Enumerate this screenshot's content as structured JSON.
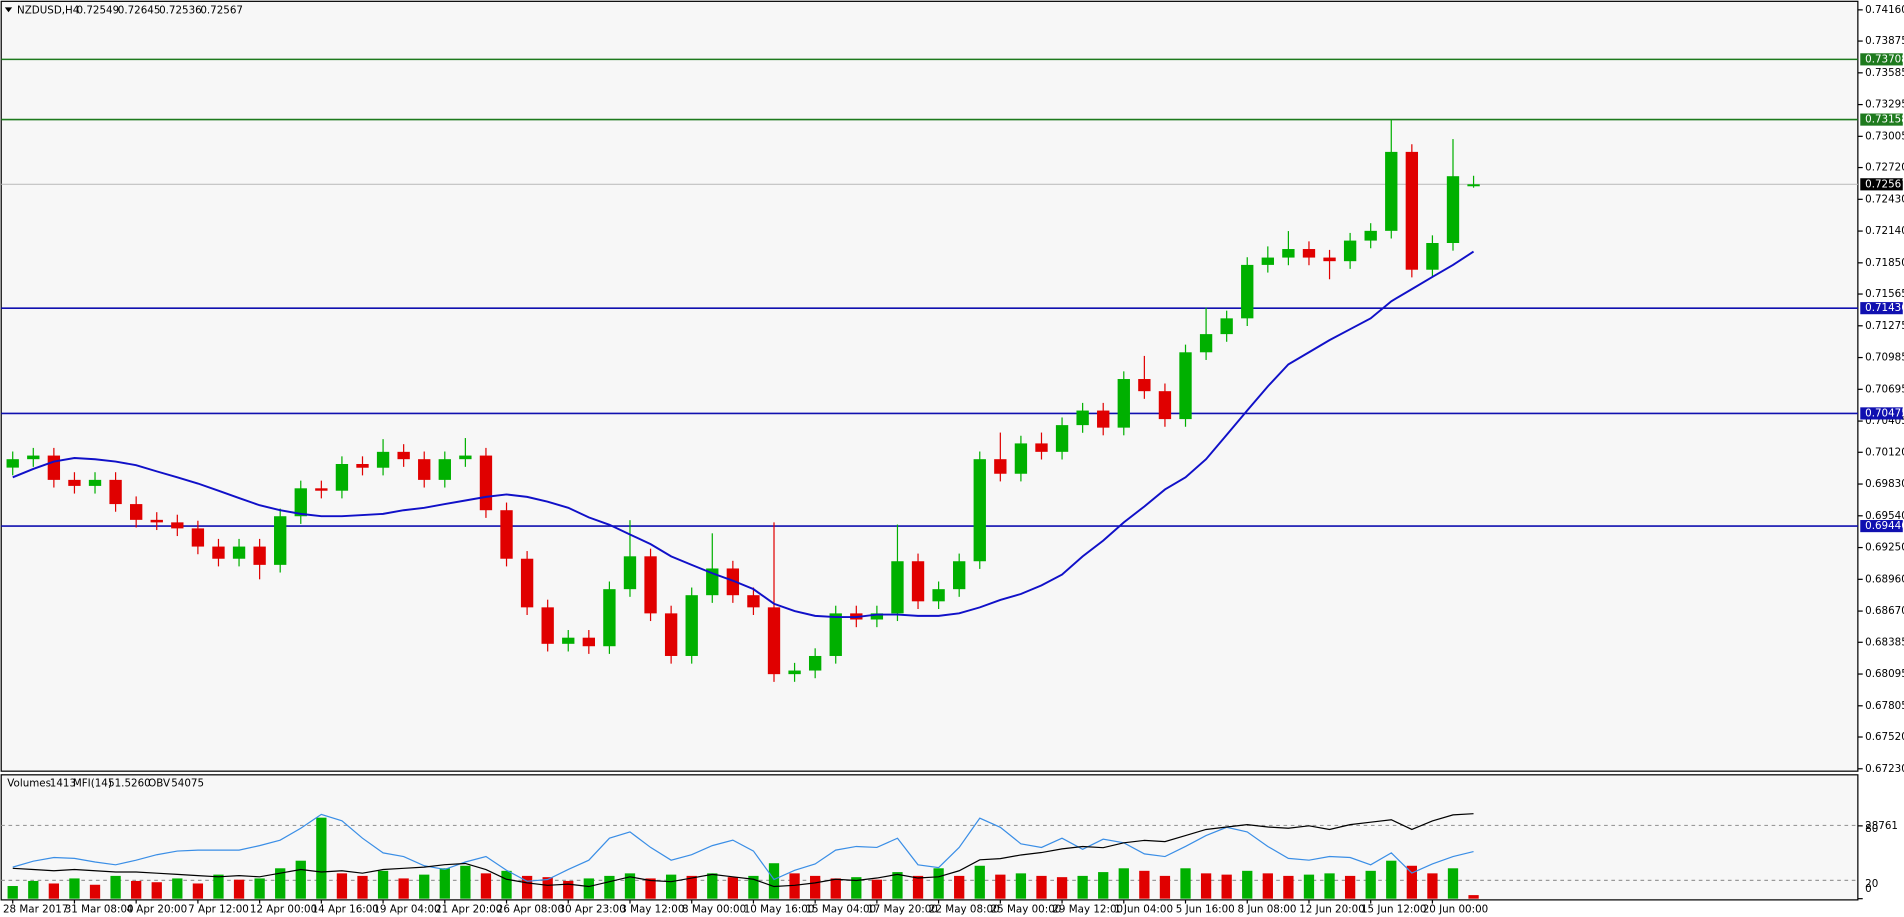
{
  "chart_data": {
    "type": "candlestick",
    "title": "NZDUSD,H4",
    "categories": [
      "28 Mar 2017",
      null,
      null,
      "31 Mar 08:00",
      null,
      null,
      "4 Apr 20:00",
      null,
      null,
      "7 Apr 12:00",
      null,
      null,
      "12 Apr 00:00",
      null,
      null,
      "14 Apr 16:00",
      null,
      null,
      "19 Apr 04:00",
      null,
      null,
      "21 Apr 20:00",
      null,
      null,
      "26 Apr 08:00",
      null,
      null,
      "30 Apr 23:00",
      null,
      null,
      "3 May 12:00",
      null,
      null,
      "8 May 00:00",
      null,
      null,
      "10 May 16:00",
      null,
      null,
      "15 May 04:00",
      null,
      null,
      "17 May 20:00",
      null,
      null,
      "22 May 08:00",
      null,
      null,
      "25 May 00:00",
      null,
      null,
      "29 May 12:00",
      null,
      null,
      "1 Jun 04:00",
      null,
      null,
      "5 Jun 16:00",
      null,
      null,
      "8 Jun 08:00",
      null,
      null,
      "12 Jun 20:00",
      null,
      null,
      "15 Jun 12:00",
      null,
      null,
      "20 Jun 00:00",
      null,
      null
    ],
    "open": [
      0.6998,
      0.70057,
      0.7009,
      0.69868,
      0.69813,
      0.69868,
      0.69647,
      0.69503,
      0.6948,
      0.69425,
      0.69259,
      0.69148,
      0.69259,
      0.69092,
      0.69536,
      0.69791,
      0.69769,
      0.70013,
      0.69979,
      0.70124,
      0.70057,
      0.69868,
      0.70057,
      0.7009,
      0.69591,
      0.69148,
      0.68704,
      0.68371,
      0.68427,
      0.68349,
      0.6887,
      0.6917,
      0.68649,
      0.6826,
      0.68815,
      0.69059,
      0.68815,
      0.68704,
      0.68094,
      0.68127,
      0.6826,
      0.68649,
      0.68593,
      0.68649,
      0.69125,
      0.68759,
      0.6887,
      0.69125,
      0.70057,
      0.69924,
      0.70201,
      0.70124,
      0.70368,
      0.70501,
      0.70345,
      0.70789,
      0.70678,
      0.70423,
      0.71033,
      0.71199,
      0.71343,
      0.71831,
      0.71898,
      0.71976,
      0.71898,
      0.71865,
      0.72053,
      0.72142,
      0.72863,
      0.71787,
      0.72031,
      0.72549
    ],
    "high": [
      0.70127,
      0.7016,
      0.7016,
      0.69938,
      0.69938,
      0.69938,
      0.69717,
      0.69573,
      0.6955,
      0.69495,
      0.69329,
      0.69329,
      0.69329,
      0.69606,
      0.69861,
      0.69861,
      0.70083,
      0.70083,
      0.7024,
      0.70194,
      0.70127,
      0.70127,
      0.7025,
      0.7016,
      0.69661,
      0.69218,
      0.68774,
      0.68497,
      0.68497,
      0.6894,
      0.695,
      0.6924,
      0.68719,
      0.68885,
      0.6938,
      0.69129,
      0.68885,
      0.6948,
      0.68197,
      0.6833,
      0.68719,
      0.68719,
      0.68719,
      0.6946,
      0.69195,
      0.6894,
      0.69195,
      0.70127,
      0.703,
      0.70271,
      0.703,
      0.70438,
      0.70571,
      0.70571,
      0.70859,
      0.71,
      0.70748,
      0.71103,
      0.7144,
      0.71413,
      0.71901,
      0.72,
      0.7214,
      0.72046,
      0.71968,
      0.72123,
      0.72212,
      0.73158,
      0.72933,
      0.72101,
      0.7298,
      0.72645
    ],
    "low": [
      0.6991,
      0.69987,
      0.69798,
      0.69743,
      0.69743,
      0.69577,
      0.69433,
      0.6941,
      0.69355,
      0.69189,
      0.69078,
      0.69078,
      0.6896,
      0.69022,
      0.69466,
      0.69699,
      0.69699,
      0.69909,
      0.69909,
      0.69987,
      0.69798,
      0.69798,
      0.69987,
      0.69521,
      0.69078,
      0.68634,
      0.68301,
      0.68301,
      0.68279,
      0.68279,
      0.688,
      0.68579,
      0.6819,
      0.6819,
      0.68745,
      0.68745,
      0.68634,
      0.68024,
      0.68024,
      0.68057,
      0.6819,
      0.68523,
      0.68523,
      0.68579,
      0.68689,
      0.68689,
      0.688,
      0.69055,
      0.69854,
      0.69854,
      0.70054,
      0.70054,
      0.70298,
      0.70275,
      0.70275,
      0.70608,
      0.70353,
      0.70353,
      0.70963,
      0.71129,
      0.71273,
      0.71761,
      0.71828,
      0.71828,
      0.717,
      0.71795,
      0.71983,
      0.72072,
      0.71717,
      0.71717,
      0.71961,
      0.72536
    ],
    "close": [
      0.70057,
      0.7009,
      0.69868,
      0.69813,
      0.69868,
      0.69647,
      0.69503,
      0.6948,
      0.69425,
      0.69259,
      0.69148,
      0.69259,
      0.69092,
      0.69536,
      0.69791,
      0.69769,
      0.70013,
      0.69979,
      0.70124,
      0.70057,
      0.69868,
      0.70057,
      0.7009,
      0.69591,
      0.69148,
      0.68704,
      0.68371,
      0.68427,
      0.68349,
      0.6887,
      0.6917,
      0.68649,
      0.6826,
      0.68815,
      0.69059,
      0.68815,
      0.68704,
      0.68094,
      0.68127,
      0.6826,
      0.68649,
      0.68593,
      0.68649,
      0.69125,
      0.68759,
      0.6887,
      0.69125,
      0.70057,
      0.69924,
      0.70201,
      0.70124,
      0.70368,
      0.70501,
      0.70345,
      0.70789,
      0.70678,
      0.70423,
      0.71033,
      0.71199,
      0.71343,
      0.71831,
      0.71898,
      0.71976,
      0.71898,
      0.71865,
      0.72053,
      0.72142,
      0.72863,
      0.71787,
      0.72031,
      0.72641,
      0.72567
    ],
    "up_color": "#00b000",
    "down_color": "#e00000",
    "ma": {
      "color": "#1010c8",
      "values": [
        0.69891,
        0.69968,
        0.70035,
        0.70068,
        0.70057,
        0.70035,
        0.70002,
        0.69946,
        0.69891,
        0.69835,
        0.69769,
        0.69702,
        0.69636,
        0.69591,
        0.69558,
        0.69536,
        0.69536,
        0.69547,
        0.69558,
        0.69591,
        0.69613,
        0.69647,
        0.6968,
        0.69713,
        0.69735,
        0.69713,
        0.69669,
        0.69613,
        0.69525,
        0.69458,
        0.69369,
        0.69281,
        0.6917,
        0.69092,
        0.69015,
        0.68948,
        0.6887,
        0.68737,
        0.68671,
        0.68626,
        0.68615,
        0.68615,
        0.68638,
        0.68638,
        0.68626,
        0.68626,
        0.68649,
        0.68704,
        0.68771,
        0.68826,
        0.68904,
        0.69003,
        0.6917,
        0.69314,
        0.6948,
        0.69625,
        0.6978,
        0.69891,
        0.70057,
        0.70279,
        0.70501,
        0.70722,
        0.70922,
        0.71033,
        0.71144,
        0.71244,
        0.71343,
        0.71499,
        0.7161,
        0.71721,
        0.71831,
        0.71953
      ]
    },
    "ylim": [
      0.67208,
      0.74249
    ],
    "yticks": [
      {
        "value": 0.7416,
        "label": "0.74160"
      },
      0.73875,
      0.73585,
      0.73295,
      0.73005,
      {
        "value": 0.7272,
        "label": "0.72720"
      },
      {
        "value": 0.7243,
        "label": "0.72430"
      },
      {
        "value": 0.7214,
        "label": "0.72140"
      },
      {
        "value": 0.7185,
        "label": "0.71850"
      },
      0.71565,
      0.71275,
      0.70985,
      0.70695,
      0.70405,
      {
        "value": 0.7012,
        "label": "0.70120"
      },
      {
        "value": 0.6983,
        "label": "0.69830"
      },
      {
        "value": 0.6954,
        "label": "0.69540"
      },
      {
        "value": 0.6925,
        "label": "0.69250"
      },
      {
        "value": 0.6896,
        "label": "0.68960"
      },
      {
        "value": 0.6867,
        "label": "0.68670"
      },
      0.68385,
      0.68095,
      0.67805,
      {
        "value": 0.6752,
        "label": "0.67520"
      },
      {
        "value": 0.6723,
        "label": "0.67230"
      }
    ],
    "levels": [
      {
        "value": 0.73708,
        "color": "#1e7a1e"
      },
      {
        "value": 0.73158,
        "color": "#1e7a1e"
      },
      {
        "value": 0.71436,
        "color": "#1010b0"
      },
      {
        "value": 0.70475,
        "color": "#1010b0"
      },
      {
        "value": 0.69446,
        "color": "#1010b0"
      }
    ],
    "panel": {
      "volumes": {
        "name": "Volumes",
        "values": [
          5000,
          7000,
          6000,
          8000,
          5500,
          9000,
          7000,
          6500,
          8000,
          6000,
          9500,
          7500,
          8000,
          12000,
          15000,
          32000,
          10000,
          9000,
          11000,
          8000,
          9500,
          12000,
          13000,
          10000,
          11000,
          9000,
          8500,
          7000,
          8000,
          9000,
          10000,
          8000,
          9500,
          9000,
          10000,
          8500,
          9000,
          14000,
          10000,
          9000,
          8000,
          8500,
          7500,
          10500,
          9000,
          12000,
          9000,
          13000,
          9500,
          10000,
          9000,
          8500,
          9000,
          10500,
          12000,
          11000,
          9000,
          12000,
          10000,
          9500,
          11000,
          10000,
          9000,
          9500,
          10000,
          9000,
          11000,
          15000,
          13000,
          10000,
          12000,
          1413
        ]
      },
      "ylim": [
        0,
        47000
      ],
      "yticks": [
        0,
        28761
      ],
      "mfi": {
        "name": "MFI(14)",
        "color": "#3a8ee6",
        "last_label": "51.5260",
        "ylim": [
          0,
          130
        ],
        "yticks": [
          20,
          80
        ],
        "values": [
          34.5,
          41,
          45,
          44,
          40,
          37,
          42,
          48,
          52,
          53,
          53,
          53,
          58,
          64,
          77,
          92,
          85,
          66,
          50,
          46,
          36,
          32,
          40,
          46,
          31,
          19,
          21,
          32,
          42,
          66,
          73,
          56,
          42,
          48,
          58,
          64,
          52,
          21,
          31,
          38,
          53,
          57,
          56,
          66,
          37,
          34,
          56,
          88,
          78,
          60,
          56,
          66,
          54,
          65,
          61,
          49,
          46,
          57,
          69,
          78,
          73,
          57,
          44,
          42,
          46,
          45,
          37,
          50,
          28,
          38,
          46,
          51.526
        ]
      },
      "obv": {
        "name": "OBV",
        "color": "#000000",
        "values": [
          -13425,
          -14925,
          -16425,
          -14925,
          -16425,
          -17925,
          -17925,
          -19425,
          -20925,
          -22425,
          -23925,
          -22425,
          -23925,
          -19425,
          -14925,
          -17925,
          -16425,
          -19425,
          -14925,
          -13425,
          -11925,
          -8925,
          -7425,
          -14925,
          -26925,
          -31425,
          -34425,
          -32925,
          -35925,
          -29925,
          -23925,
          -28425,
          -29925,
          -25425,
          -20925,
          -23925,
          -26925,
          -35925,
          -34425,
          -31425,
          -26925,
          -28425,
          -25425,
          -20925,
          -25425,
          -23925,
          -16425,
          -2925,
          -1425,
          3075,
          6075,
          10575,
          13575,
          12075,
          18075,
          21075,
          19575,
          27075,
          34575,
          37575,
          40575,
          37575,
          36075,
          39075,
          34575,
          40575,
          43575,
          46575,
          34575,
          45075,
          52575,
          54075
        ]
      }
    }
  }
}
